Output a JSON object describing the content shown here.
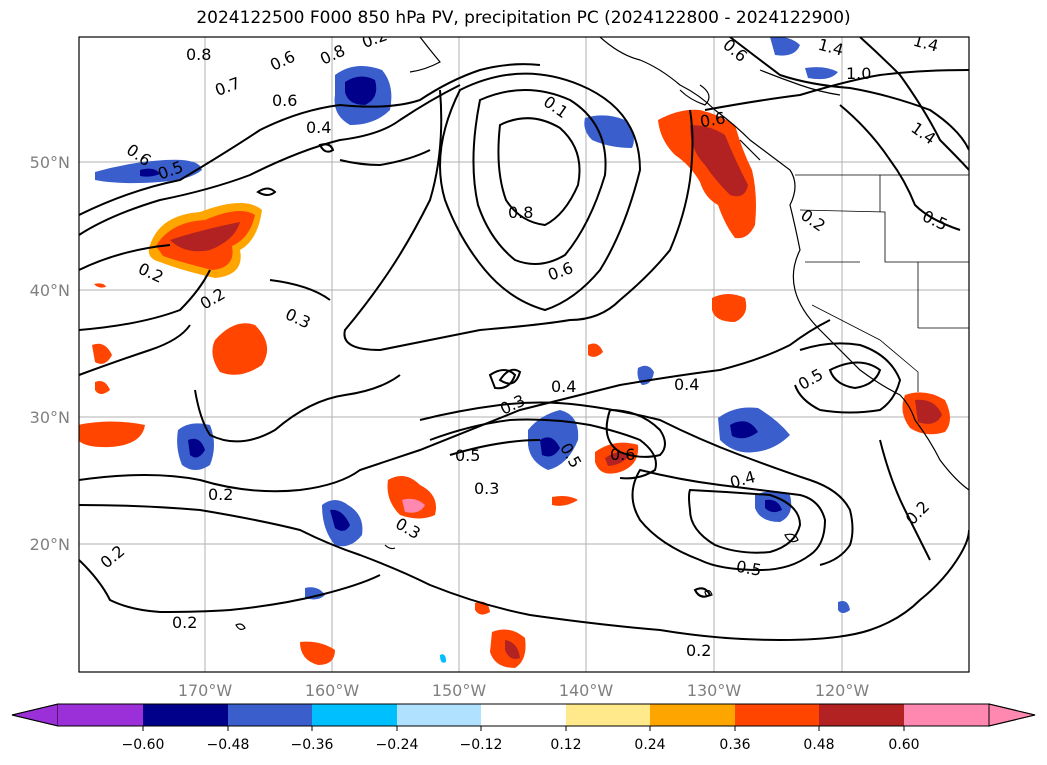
{
  "title": "2024122500 F000 850 hPa PV, precipitation PC (2024122800 - 2024122900)",
  "map": {
    "lat_labels": [
      "50°N",
      "40°N",
      "30°N",
      "20°N"
    ],
    "lon_labels": [
      "170°W",
      "160°W",
      "150°W",
      "140°W",
      "130°W",
      "120°W"
    ],
    "contour_labels": [
      "0.8",
      "0.7",
      "0.6",
      "0.8",
      "0.2",
      "1.4",
      "1.0",
      "1.4",
      "0.6",
      "0.6",
      "0.4",
      "0.6",
      "0.5",
      "0.1",
      "0.6",
      "1.4",
      "0.8",
      "0.6",
      "0.5",
      "0.2",
      "0.2",
      "0.2",
      "0.3",
      "0.4",
      "0.3",
      "0.4",
      "0.5",
      "0.5",
      "0.6",
      "0.3",
      "0.4",
      "0.5",
      "0.2",
      "0.3",
      "0.5",
      "0.2",
      "0.2",
      "0.2",
      "0.2"
    ]
  },
  "colorbar": {
    "ticks": [
      "−0.60",
      "−0.48",
      "−0.36",
      "−0.24",
      "−0.12",
      "0.12",
      "0.24",
      "0.36",
      "0.48",
      "0.60"
    ],
    "colors": [
      "#9b30d9",
      "#00008b",
      "#3a5fcd",
      "#00bfff",
      "#b0e2ff",
      "#ffffff",
      "#ffe98a",
      "#ffa500",
      "#ff4500",
      "#b22222",
      "#ff88b0"
    ]
  }
}
